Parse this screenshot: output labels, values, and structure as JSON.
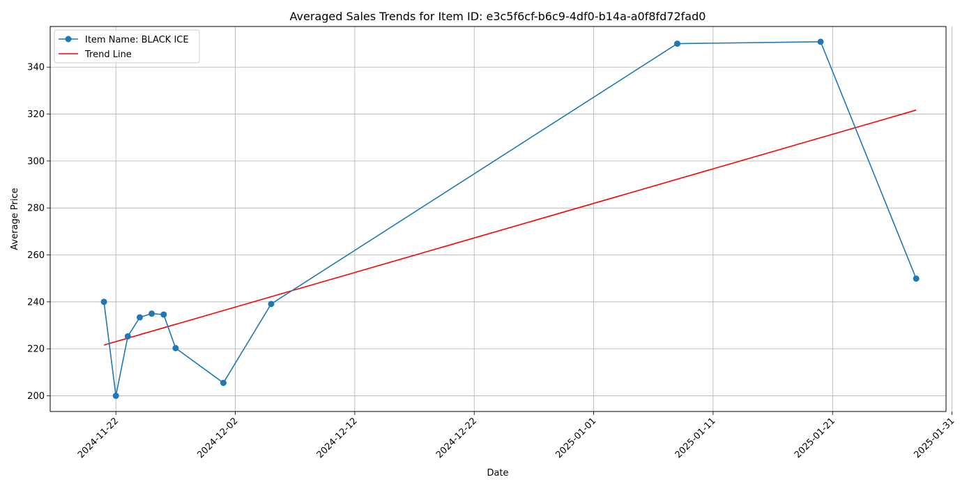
{
  "chart_data": {
    "type": "line",
    "title": "Averaged Sales Trends for Item ID: e3c5f6cf-b6c9-4df0-b14a-a0f8fd72fad0",
    "xlabel": "Date",
    "ylabel": "Average Price",
    "xlim": [
      "2024-11-16T12:00",
      "2025-01-30T12:00"
    ],
    "ylim": [
      193.3,
      357.3
    ],
    "x_ticks": [
      "2024-11-22",
      "2024-12-02",
      "2024-12-12",
      "2024-12-22",
      "2025-01-01",
      "2025-01-11",
      "2025-01-21",
      "2025-01-31"
    ],
    "y_ticks": [
      200,
      220,
      240,
      260,
      280,
      300,
      320,
      340
    ],
    "grid": true,
    "legend_position": "top-left",
    "series": [
      {
        "name": "Item Name: BLACK ICE",
        "color": "#1f77b4",
        "marker": "circle",
        "points": [
          {
            "x": "2024-11-21",
            "y": 240
          },
          {
            "x": "2024-11-22",
            "y": 200
          },
          {
            "x": "2024-11-23",
            "y": 225.3
          },
          {
            "x": "2024-11-24",
            "y": 233.4
          },
          {
            "x": "2024-11-25",
            "y": 235
          },
          {
            "x": "2024-11-26",
            "y": 234.6
          },
          {
            "x": "2024-11-27",
            "y": 220.3
          },
          {
            "x": "2024-12-01",
            "y": 205.5
          },
          {
            "x": "2024-12-05",
            "y": 239.1
          },
          {
            "x": "2025-01-08",
            "y": 350
          },
          {
            "x": "2025-01-20",
            "y": 350.8
          },
          {
            "x": "2025-01-28",
            "y": 249.9
          }
        ]
      },
      {
        "name": "Trend Line",
        "color": "#ff0000",
        "marker": "none",
        "points": [
          {
            "x": "2024-11-21",
            "y": 221.6
          },
          {
            "x": "2025-01-28",
            "y": 321.7
          }
        ]
      }
    ]
  }
}
